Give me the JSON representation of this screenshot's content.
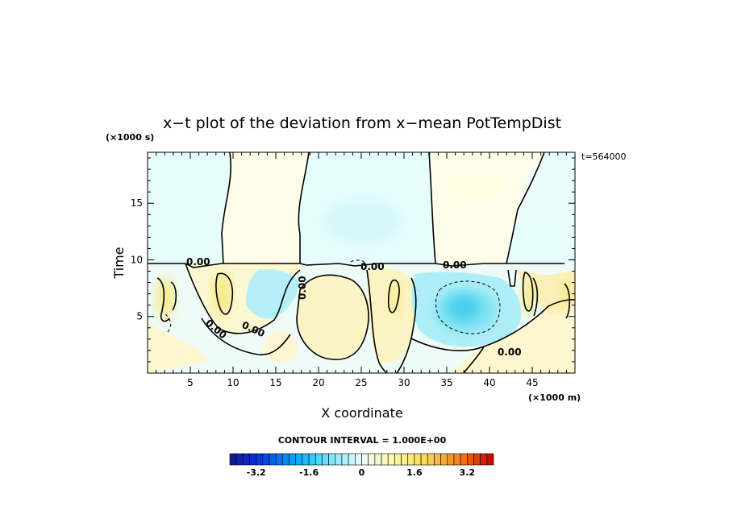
{
  "chart_data": {
    "type": "heatmap",
    "title": "x−t plot of the deviation from x−mean PotTempDist",
    "xlabel": "X coordinate",
    "ylabel": "Time",
    "x_unit": "(×1000 m)",
    "y_unit": "(×1000 s)",
    "time_annotation": "t=564000",
    "xlim": [
      0,
      50
    ],
    "ylim": [
      0,
      19.5
    ],
    "x_ticks": [
      5,
      10,
      15,
      20,
      25,
      30,
      35,
      40,
      45
    ],
    "y_ticks": [
      5,
      10,
      15
    ],
    "contour_interval_label": "CONTOUR INTERVAL = 1.000E+00",
    "contour_labels": [
      "0.00",
      "0.00",
      "0.00",
      "0.00",
      "0.00",
      "0.00",
      "0.00"
    ],
    "colorbar": {
      "min": -4,
      "max": 4,
      "tick_labels": [
        "-3.2",
        "-1.6",
        "0",
        "1.6",
        "3.2"
      ],
      "tick_values": [
        -3.2,
        -1.6,
        0,
        1.6,
        3.2
      ]
    }
  }
}
